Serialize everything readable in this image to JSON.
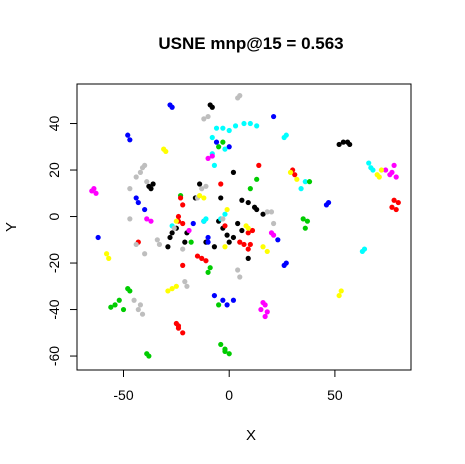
{
  "chart_data": {
    "type": "scatter",
    "title": "USNE mnp@15 = 0.563",
    "xlabel": "X",
    "ylabel": "Y",
    "xlim": [
      -72,
      86
    ],
    "ylim": [
      -66,
      57
    ],
    "xticks": [
      -50,
      0,
      50
    ],
    "xtick_labels": [
      "-50",
      "0",
      "50"
    ],
    "yticks": [
      -60,
      -40,
      -20,
      0,
      20,
      40
    ],
    "ytick_labels": [
      "-60",
      "-40",
      "-20",
      "0",
      "20",
      "40"
    ],
    "grid": false,
    "legend": "none",
    "series": [
      {
        "color": "#000000",
        "points": [
          [
            54,
            32
          ],
          [
            52,
            31
          ],
          [
            56,
            32
          ],
          [
            57,
            31
          ],
          [
            -9,
            48
          ],
          [
            -8,
            47
          ],
          [
            2,
            19
          ],
          [
            -37,
            12
          ],
          [
            -38,
            13
          ],
          [
            -36,
            14
          ],
          [
            -27,
            -7
          ],
          [
            -28,
            -9
          ],
          [
            -29,
            -13
          ],
          [
            -25,
            -5
          ],
          [
            -5,
            -2
          ],
          [
            4,
            -3
          ],
          [
            -1,
            -8
          ],
          [
            0,
            -11
          ],
          [
            2,
            -9
          ],
          [
            6,
            -6
          ],
          [
            6,
            7
          ],
          [
            9,
            6
          ],
          [
            13,
            3
          ],
          [
            16,
            1
          ],
          [
            12,
            4
          ],
          [
            -3,
            -5
          ],
          [
            -7,
            -13
          ],
          [
            -11,
            -11
          ],
          [
            -20,
            -7
          ],
          [
            -21,
            -11
          ],
          [
            9,
            -18
          ],
          [
            -4,
            8
          ],
          [
            -16,
            8
          ],
          [
            -14,
            14
          ]
        ]
      },
      {
        "color": "#0000ff",
        "points": [
          [
            -48,
            35
          ],
          [
            -47,
            33
          ],
          [
            -28,
            48
          ],
          [
            -27,
            47
          ],
          [
            -43,
            6
          ],
          [
            -44,
            8
          ],
          [
            -40,
            3
          ],
          [
            21,
            43
          ],
          [
            -62,
            -9
          ],
          [
            23,
            -10
          ],
          [
            26,
            -21
          ],
          [
            27,
            -20
          ],
          [
            -7,
            -34
          ],
          [
            -3,
            -36
          ],
          [
            -1,
            -38
          ],
          [
            2,
            -36
          ],
          [
            46,
            5
          ],
          [
            47,
            6
          ],
          [
            -10,
            -9
          ],
          [
            -10,
            -11
          ],
          [
            0,
            30
          ],
          [
            -6,
            32
          ],
          [
            -12,
            -2
          ],
          [
            -17,
            -3
          ]
        ]
      },
      {
        "color": "#00ffff",
        "points": [
          [
            -8,
            34
          ],
          [
            -6,
            38
          ],
          [
            -3,
            38
          ],
          [
            0,
            37
          ],
          [
            3,
            39
          ],
          [
            7,
            40
          ],
          [
            10,
            40
          ],
          [
            13,
            39
          ],
          [
            27,
            35
          ],
          [
            26,
            34
          ],
          [
            66,
            23
          ],
          [
            67,
            21
          ],
          [
            68,
            20
          ],
          [
            64,
            -14
          ],
          [
            63,
            -15
          ],
          [
            -8,
            27
          ],
          [
            -2,
            1
          ],
          [
            -4,
            -1
          ],
          [
            -11,
            -1
          ],
          [
            -12,
            -2
          ],
          [
            -7,
            22
          ],
          [
            -2,
            29
          ],
          [
            -27,
            -4
          ],
          [
            36,
            15
          ],
          [
            34,
            12
          ]
        ]
      },
      {
        "color": "#00cc00",
        "points": [
          [
            -54,
            -38
          ],
          [
            -56,
            -39
          ],
          [
            -52,
            -36
          ],
          [
            -50,
            -40
          ],
          [
            -48,
            -31
          ],
          [
            -47,
            -32
          ],
          [
            -39,
            -59
          ],
          [
            -38,
            -60
          ],
          [
            -4,
            -55
          ],
          [
            -2,
            -58
          ],
          [
            0,
            -59
          ],
          [
            -2,
            -57
          ],
          [
            -5,
            -38
          ],
          [
            35,
            -1
          ],
          [
            36,
            -5
          ],
          [
            37,
            -2
          ],
          [
            38,
            15
          ],
          [
            -5,
            30
          ],
          [
            -3,
            32
          ],
          [
            -9,
            -22
          ],
          [
            -10,
            -24
          ],
          [
            13,
            16
          ],
          [
            -23,
            9
          ],
          [
            10,
            12
          ],
          [
            -18,
            -11
          ]
        ]
      },
      {
        "color": "#ff0000",
        "points": [
          [
            -25,
            -46
          ],
          [
            -24,
            -48
          ],
          [
            -22,
            -50
          ],
          [
            -24,
            -47
          ],
          [
            -15,
            -17
          ],
          [
            -13,
            -18
          ],
          [
            -11,
            -19
          ],
          [
            -23,
            8
          ],
          [
            -22,
            5
          ],
          [
            -24,
            0
          ],
          [
            -22,
            -3
          ],
          [
            -24,
            -2
          ],
          [
            -22,
            -21
          ],
          [
            9,
            -7
          ],
          [
            11,
            -6
          ],
          [
            14,
            22
          ],
          [
            -2,
            -4
          ],
          [
            7,
            -12
          ],
          [
            5,
            -11
          ],
          [
            -43,
            -11
          ],
          [
            77,
            4
          ],
          [
            79,
            3
          ],
          [
            78,
            7
          ],
          [
            80,
            6
          ],
          [
            31,
            18
          ],
          [
            30,
            20
          ],
          [
            -4,
            14
          ],
          [
            9,
            -14
          ],
          [
            10,
            -12
          ]
        ]
      },
      {
        "color": "#ff00ff",
        "points": [
          [
            -65,
            11
          ],
          [
            -63,
            10
          ],
          [
            -64,
            12
          ],
          [
            74,
            20
          ],
          [
            76,
            18
          ],
          [
            77,
            19
          ],
          [
            78,
            22
          ],
          [
            79,
            17
          ],
          [
            -37,
            -2
          ],
          [
            -39,
            -1
          ],
          [
            16,
            -37
          ],
          [
            17,
            -38
          ],
          [
            18,
            -41
          ],
          [
            17,
            -43
          ],
          [
            15,
            -40
          ],
          [
            20,
            -7
          ],
          [
            21,
            -8
          ],
          [
            -10,
            25
          ],
          [
            -8,
            26
          ],
          [
            -19,
            -6
          ]
        ]
      },
      {
        "color": "#bebebe",
        "points": [
          [
            4,
            51
          ],
          [
            5,
            52
          ],
          [
            -12,
            42
          ],
          [
            -10,
            43
          ],
          [
            -40,
            22
          ],
          [
            -41,
            21
          ],
          [
            -42,
            19
          ],
          [
            -44,
            17
          ],
          [
            -39,
            15
          ],
          [
            -47,
            12
          ],
          [
            -47,
            -1
          ],
          [
            -44,
            -12
          ],
          [
            -40,
            -16
          ],
          [
            -45,
            -36
          ],
          [
            -42,
            -38
          ],
          [
            -41,
            -42
          ],
          [
            -43,
            -40
          ],
          [
            -20,
            -30
          ],
          [
            -21,
            -28
          ],
          [
            -22,
            -14
          ],
          [
            -26,
            -5
          ],
          [
            -15,
            8
          ],
          [
            -11,
            13
          ],
          [
            -13,
            12
          ],
          [
            18,
            2
          ],
          [
            20,
            2
          ],
          [
            21,
            -3
          ],
          [
            -3,
            -1
          ],
          [
            4,
            -23
          ],
          [
            5,
            -26
          ],
          [
            -34,
            -10
          ],
          [
            -33,
            -12
          ]
        ]
      },
      {
        "color": "#ffff00",
        "points": [
          [
            -31,
            29
          ],
          [
            -30,
            28
          ],
          [
            -58,
            -16
          ],
          [
            -57,
            -18
          ],
          [
            -29,
            -32
          ],
          [
            -27,
            -31
          ],
          [
            -25,
            -30
          ],
          [
            53,
            -32
          ],
          [
            52,
            -34
          ],
          [
            70,
            18
          ],
          [
            72,
            20
          ],
          [
            71,
            17
          ],
          [
            29,
            19
          ],
          [
            32,
            16
          ],
          [
            -14,
            9
          ],
          [
            -12,
            8
          ],
          [
            -1,
            3
          ],
          [
            -25,
            -2
          ],
          [
            -2,
            -13
          ],
          [
            8,
            -4
          ],
          [
            9,
            -5
          ],
          [
            18,
            -15
          ],
          [
            16,
            -13
          ]
        ]
      }
    ]
  }
}
